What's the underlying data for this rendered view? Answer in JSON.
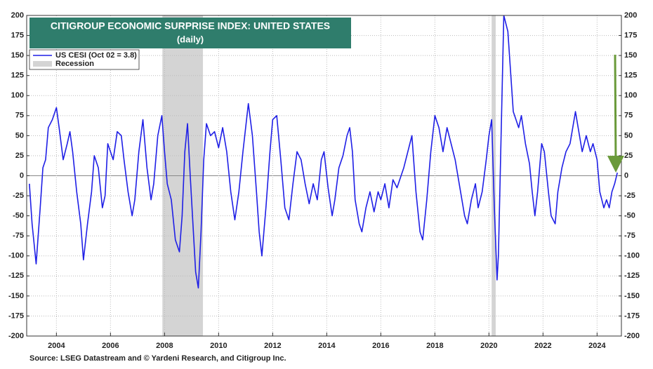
{
  "chart_data": {
    "type": "line",
    "title": "CITIGROUP ECONOMIC SURPRISE INDEX: UNITED STATES",
    "subtitle": "(daily)",
    "source": "Source: LSEG Datastream and © Yardeni Research, and Citigroup Inc.",
    "x": [
      2003.0,
      2003.1,
      2003.25,
      2003.4,
      2003.5,
      2003.6,
      2003.7,
      2003.85,
      2004.0,
      2004.1,
      2004.25,
      2004.4,
      2004.5,
      2004.6,
      2004.75,
      2004.9,
      2005.0,
      2005.15,
      2005.3,
      2005.4,
      2005.55,
      2005.7,
      2005.8,
      2005.9,
      2006.0,
      2006.1,
      2006.25,
      2006.4,
      2006.5,
      2006.65,
      2006.8,
      2006.9,
      2007.05,
      2007.2,
      2007.35,
      2007.5,
      2007.6,
      2007.75,
      2007.9,
      2008.0,
      2008.1,
      2008.25,
      2008.4,
      2008.55,
      2008.65,
      2008.75,
      2008.85,
      2008.95,
      2009.05,
      2009.15,
      2009.25,
      2009.35,
      2009.45,
      2009.55,
      2009.7,
      2009.85,
      2010.0,
      2010.15,
      2010.3,
      2010.45,
      2010.6,
      2010.75,
      2010.9,
      2011.0,
      2011.1,
      2011.25,
      2011.4,
      2011.5,
      2011.6,
      2011.75,
      2011.9,
      2012.0,
      2012.15,
      2012.3,
      2012.45,
      2012.6,
      2012.75,
      2012.9,
      2013.05,
      2013.2,
      2013.35,
      2013.5,
      2013.65,
      2013.8,
      2013.9,
      2014.05,
      2014.2,
      2014.3,
      2014.45,
      2014.6,
      2014.75,
      2014.85,
      2014.95,
      2015.05,
      2015.2,
      2015.3,
      2015.45,
      2015.6,
      2015.75,
      2015.9,
      2016.0,
      2016.15,
      2016.3,
      2016.45,
      2016.6,
      2016.75,
      2016.85,
      2017.0,
      2017.15,
      2017.3,
      2017.45,
      2017.55,
      2017.7,
      2017.85,
      2018.0,
      2018.15,
      2018.3,
      2018.45,
      2018.6,
      2018.75,
      2018.9,
      2019.0,
      2019.1,
      2019.2,
      2019.35,
      2019.5,
      2019.6,
      2019.75,
      2019.9,
      2020.0,
      2020.1,
      2020.2,
      2020.3,
      2020.35,
      2020.45,
      2020.55,
      2020.7,
      2020.8,
      2020.9,
      2021.0,
      2021.1,
      2021.2,
      2021.35,
      2021.5,
      2021.6,
      2021.7,
      2021.8,
      2021.95,
      2022.05,
      2022.2,
      2022.3,
      2022.45,
      2022.55,
      2022.7,
      2022.85,
      2023.0,
      2023.1,
      2023.2,
      2023.3,
      2023.45,
      2023.6,
      2023.75,
      2023.85,
      2024.0,
      2024.1,
      2024.25,
      2024.35,
      2024.45,
      2024.55,
      2024.65,
      2024.75
    ],
    "series": [
      {
        "name": "US CESI (Oct 02 = 3.8)",
        "color": "#1f1fe6",
        "values": [
          -10,
          -60,
          -110,
          -40,
          10,
          20,
          60,
          70,
          85,
          60,
          20,
          40,
          55,
          30,
          -20,
          -60,
          -105,
          -60,
          -20,
          25,
          10,
          -40,
          -25,
          40,
          30,
          20,
          55,
          50,
          20,
          -20,
          -50,
          -30,
          30,
          70,
          10,
          -30,
          -10,
          50,
          75,
          30,
          -10,
          -30,
          -80,
          -95,
          -50,
          30,
          65,
          0,
          -60,
          -120,
          -140,
          -70,
          20,
          65,
          50,
          55,
          35,
          60,
          30,
          -20,
          -55,
          -20,
          30,
          60,
          90,
          50,
          -20,
          -70,
          -100,
          -40,
          30,
          70,
          75,
          20,
          -40,
          -55,
          -10,
          30,
          20,
          -10,
          -35,
          -10,
          -30,
          20,
          30,
          -15,
          -50,
          -30,
          10,
          25,
          50,
          60,
          30,
          -30,
          -60,
          -70,
          -40,
          -20,
          -45,
          -20,
          -30,
          -10,
          -40,
          -5,
          -15,
          0,
          10,
          30,
          50,
          -20,
          -70,
          -80,
          -30,
          30,
          75,
          60,
          30,
          60,
          40,
          20,
          -10,
          -30,
          -50,
          -60,
          -30,
          -10,
          -40,
          -20,
          20,
          50,
          70,
          -40,
          -130,
          -100,
          50,
          200,
          180,
          130,
          80,
          70,
          60,
          75,
          40,
          15,
          -20,
          -50,
          -20,
          40,
          30,
          -20,
          -50,
          -60,
          -20,
          10,
          30,
          40,
          60,
          80,
          60,
          30,
          50,
          30,
          40,
          20,
          -20,
          -40,
          -30,
          -40,
          -20,
          -10,
          3.8
        ]
      }
    ],
    "recession": {
      "name": "Recession",
      "color": "#d4d4d4",
      "spans": [
        [
          2007.92,
          2009.42
        ],
        [
          2020.1,
          2020.25
        ]
      ]
    },
    "xlim": [
      2002.9,
      2024.9
    ],
    "xticks": [
      2004,
      2006,
      2008,
      2010,
      2012,
      2014,
      2016,
      2018,
      2020,
      2022,
      2024
    ],
    "ylim": [
      -200,
      200
    ],
    "yticks": [
      -200,
      -175,
      -150,
      -125,
      -100,
      -75,
      -50,
      -25,
      0,
      25,
      50,
      75,
      100,
      125,
      150,
      175,
      200
    ],
    "grid": true
  }
}
